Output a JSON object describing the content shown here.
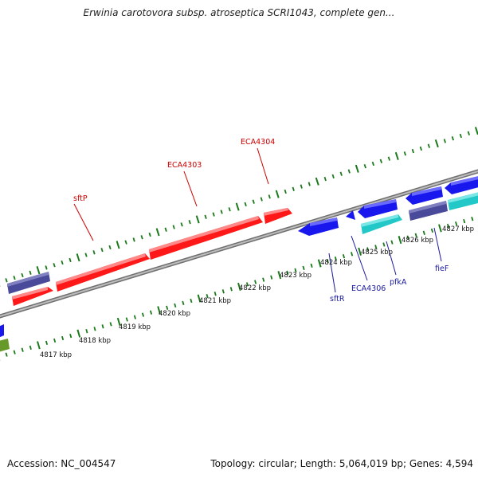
{
  "title": "Erwinia carotovora subsp. atroseptica SCRI1043, complete gen...",
  "footer": {
    "accession": "Accession: NC_004547",
    "summary": "Topology: circular; Length: 5,064,019 bp; Genes: 4,594"
  },
  "colors": {
    "forward_cds": "#ff1010",
    "reverse_cds": "#1010ee",
    "operon": "#4a4a9a",
    "rna": "#33cccc",
    "other": "#66992a",
    "tick": "#1a7a1a",
    "backbone": "#8a8a8a",
    "label_red": "#cc0000",
    "label_blue": "#1a1aa0"
  },
  "scale_labels": [
    "4817 kbp",
    "4818 kbp",
    "4819 kbp",
    "4820 kbp",
    "4821 kbp",
    "4822 kbp",
    "4823 kbp",
    "4824 kbp",
    "4825 kbp",
    "4826 kbp",
    "4827 kbp"
  ],
  "gene_labels_top": [
    "sftP",
    "ECA4303",
    "ECA4304"
  ],
  "gene_labels_bottom": [
    "sftR",
    "ECA4306",
    "pfkA",
    "fieF"
  ]
}
